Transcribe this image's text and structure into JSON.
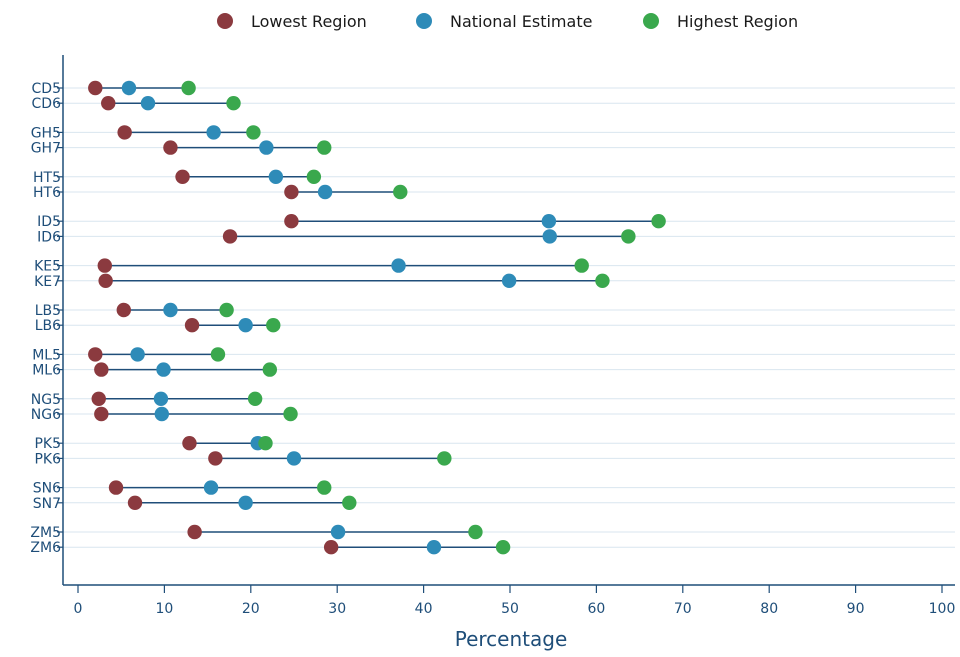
{
  "chart_data": {
    "type": "dot-range",
    "title": "",
    "xlabel": "Percentage",
    "ylabel": "",
    "xlim": [
      0,
      100
    ],
    "xticks": [
      0,
      10,
      20,
      30,
      40,
      50,
      60,
      70,
      80,
      90,
      100
    ],
    "grid": "horizontal",
    "legend_position": "top",
    "colors": {
      "lowest": "#8b3a3f",
      "national": "#2e8bb8",
      "highest": "#3aa84d",
      "line": "#1f4e79",
      "grid": "#d9e6ef"
    },
    "series": [
      {
        "key": "lowest",
        "name": "Lowest Region"
      },
      {
        "key": "national",
        "name": "National Estimate"
      },
      {
        "key": "highest",
        "name": "Highest Region"
      }
    ],
    "categories": [
      "CD5",
      "CD6",
      "GH5",
      "GH7",
      "HT5",
      "HT6",
      "ID5",
      "ID6",
      "KE5",
      "KE7",
      "LB5",
      "LB6",
      "ML5",
      "ML6",
      "NG5",
      "NG6",
      "PK5",
      "PK6",
      "SN6",
      "SN7",
      "ZM5",
      "ZM6"
    ],
    "rows": [
      {
        "label": "CD5",
        "lowest": 2.0,
        "national": 5.9,
        "highest": 12.8
      },
      {
        "label": "CD6",
        "lowest": 3.5,
        "national": 8.1,
        "highest": 18.0
      },
      {
        "label": "GH5",
        "lowest": 5.4,
        "national": 15.7,
        "highest": 20.3
      },
      {
        "label": "GH7",
        "lowest": 10.7,
        "national": 21.8,
        "highest": 28.5
      },
      {
        "label": "HT5",
        "lowest": 12.1,
        "national": 22.9,
        "highest": 27.3
      },
      {
        "label": "HT6",
        "lowest": 24.7,
        "national": 28.6,
        "highest": 37.3
      },
      {
        "label": "ID5",
        "lowest": 24.7,
        "national": 54.5,
        "highest": 67.2
      },
      {
        "label": "ID6",
        "lowest": 17.6,
        "national": 54.6,
        "highest": 63.7
      },
      {
        "label": "KE5",
        "lowest": 3.1,
        "national": 37.1,
        "highest": 58.3
      },
      {
        "label": "KE7",
        "lowest": 3.2,
        "national": 49.9,
        "highest": 60.7
      },
      {
        "label": "LB5",
        "lowest": 5.3,
        "national": 10.7,
        "highest": 17.2
      },
      {
        "label": "LB6",
        "lowest": 13.2,
        "national": 19.4,
        "highest": 22.6
      },
      {
        "label": "ML5",
        "lowest": 2.0,
        "national": 6.9,
        "highest": 16.2
      },
      {
        "label": "ML6",
        "lowest": 2.7,
        "national": 9.9,
        "highest": 22.2
      },
      {
        "label": "NG5",
        "lowest": 2.4,
        "national": 9.6,
        "highest": 20.5
      },
      {
        "label": "NG6",
        "lowest": 2.7,
        "national": 9.7,
        "highest": 24.6
      },
      {
        "label": "PK5",
        "lowest": 12.9,
        "national": 20.8,
        "highest": 21.7
      },
      {
        "label": "PK6",
        "lowest": 15.9,
        "national": 25.0,
        "highest": 42.4
      },
      {
        "label": "SN6",
        "lowest": 4.4,
        "national": 15.4,
        "highest": 28.5
      },
      {
        "label": "SN7",
        "lowest": 6.6,
        "national": 19.4,
        "highest": 31.4
      },
      {
        "label": "ZM5",
        "lowest": 13.5,
        "national": 30.1,
        "highest": 46.0
      },
      {
        "label": "ZM6",
        "lowest": 29.3,
        "national": 41.2,
        "highest": 49.2
      }
    ]
  }
}
